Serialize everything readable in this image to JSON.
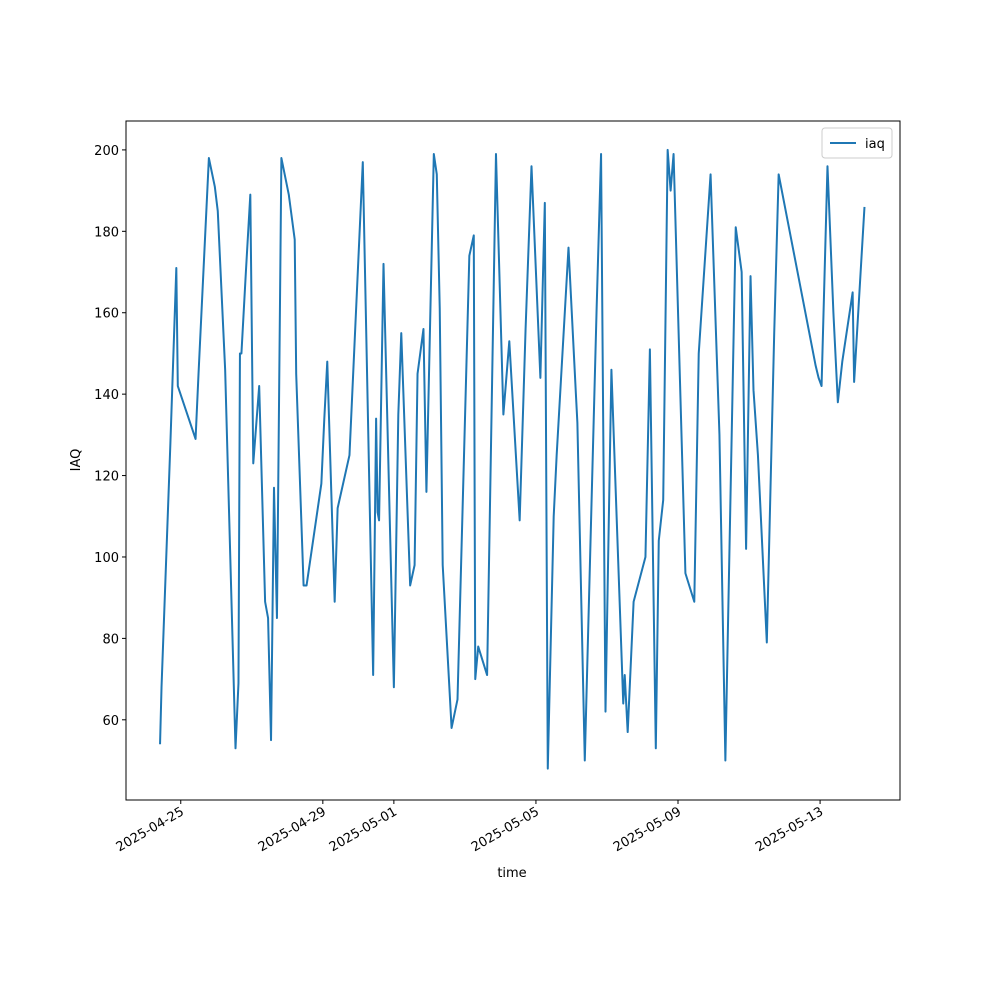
{
  "chart_data": {
    "type": "line",
    "xlabel": "time",
    "ylabel": "IAQ",
    "x": [
      "2025-04-24T10:00",
      "2025-04-24T11:00",
      "2025-04-24T17:00",
      "2025-04-24T21:00",
      "2025-04-24T22:00",
      "2025-04-25T10:00",
      "2025-04-25T12:00",
      "2025-04-25T19:00",
      "2025-04-25T23:00",
      "2025-04-26T01:00",
      "2025-04-26T06:00",
      "2025-04-26T13:00",
      "2025-04-26T15:00",
      "2025-04-26T16:00",
      "2025-04-26T17:00",
      "2025-04-26T20:00",
      "2025-04-26T23:00",
      "2025-04-27T01:00",
      "2025-04-27T05:00",
      "2025-04-27T09:00",
      "2025-04-27T11:00",
      "2025-04-27T13:00",
      "2025-04-27T15:00",
      "2025-04-27T17:00",
      "2025-04-27T20:00",
      "2025-04-28T01:00",
      "2025-04-28T05:00",
      "2025-04-28T06:00",
      "2025-04-28T11:00",
      "2025-04-28T13:00",
      "2025-04-28T23:00",
      "2025-04-29T01:00",
      "2025-04-29T03:00",
      "2025-04-29T08:00",
      "2025-04-29T10:00",
      "2025-04-29T18:00",
      "2025-04-29T20:00",
      "2025-04-29T23:00",
      "2025-04-30T03:00",
      "2025-04-30T10:00",
      "2025-04-30T12:00",
      "2025-04-30T13:00",
      "2025-04-30T14:00",
      "2025-04-30T17:00",
      "2025-05-01T00:00",
      "2025-05-01T03:00",
      "2025-05-01T05:00",
      "2025-05-01T11:00",
      "2025-05-01T14:00",
      "2025-05-01T16:00",
      "2025-05-01T20:00",
      "2025-05-01T22:00",
      "2025-05-02T03:00",
      "2025-05-02T05:00",
      "2025-05-02T07:00",
      "2025-05-02T09:00",
      "2025-05-02T15:00",
      "2025-05-02T19:00",
      "2025-05-03T03:00",
      "2025-05-03T06:00",
      "2025-05-03T07:00",
      "2025-05-03T09:00",
      "2025-05-03T15:00",
      "2025-05-03T21:00",
      "2025-05-04T02:00",
      "2025-05-04T06:00",
      "2025-05-04T13:00",
      "2025-05-04T17:00",
      "2025-05-04T21:00",
      "2025-05-05T03:00",
      "2025-05-05T06:00",
      "2025-05-05T08:00",
      "2025-05-05T12:00",
      "2025-05-05T14:00",
      "2025-05-05T22:00",
      "2025-05-06T03:00",
      "2025-05-06T04:00",
      "2025-05-06T09:00",
      "2025-05-06T17:00",
      "2025-05-06T20:00",
      "2025-05-06T23:00",
      "2025-05-07T03:00",
      "2025-05-07T11:00",
      "2025-05-07T12:00",
      "2025-05-07T14:00",
      "2025-05-07T18:00",
      "2025-05-08T02:00",
      "2025-05-08T05:00",
      "2025-05-08T09:00",
      "2025-05-08T11:00",
      "2025-05-08T14:00",
      "2025-05-08T17:00",
      "2025-05-08T19:00",
      "2025-05-08T21:00",
      "2025-05-09T05:00",
      "2025-05-09T11:00",
      "2025-05-09T14:00",
      "2025-05-09T22:00",
      "2025-05-10T04:00",
      "2025-05-10T08:00",
      "2025-05-10T15:00",
      "2025-05-10T19:00",
      "2025-05-10T22:00",
      "2025-05-11T01:00",
      "2025-05-11T03:00",
      "2025-05-11T06:00",
      "2025-05-11T12:00",
      "2025-05-11T17:00",
      "2025-05-11T20:00",
      "2025-05-12T21:00",
      "2025-05-12T23:00",
      "2025-05-13T01:00",
      "2025-05-13T05:00",
      "2025-05-13T09:00",
      "2025-05-13T12:00",
      "2025-05-13T15:00",
      "2025-05-13T22:00",
      "2025-05-13T23:00",
      "2025-05-14T06:00"
    ],
    "series": [
      {
        "name": "iaq",
        "color": "#1f77b4",
        "values": [
          54,
          68,
          128,
          171,
          142,
          129,
          145,
          198,
          191,
          185,
          146,
          53,
          69,
          150,
          150,
          170,
          189,
          123,
          142,
          89,
          85,
          55,
          117,
          85,
          198,
          189,
          178,
          145,
          93,
          93,
          118,
          134,
          148,
          89,
          112,
          125,
          141,
          165,
          197,
          71,
          134,
          111,
          109,
          172,
          68,
          135,
          155,
          93,
          98,
          145,
          156,
          116,
          199,
          194,
          161,
          98,
          58,
          65,
          174,
          179,
          70,
          78,
          71,
          199,
          135,
          153,
          109,
          156,
          196,
          144,
          187,
          48,
          110,
          125,
          176,
          140,
          133,
          50,
          161,
          199,
          62,
          146,
          64,
          71,
          57,
          89,
          100,
          151,
          53,
          104,
          114,
          200,
          190,
          199,
          96,
          89,
          150,
          194,
          130,
          50,
          181,
          170,
          102,
          169,
          141,
          125,
          79,
          155,
          194,
          147,
          144,
          142,
          196,
          160,
          138,
          148,
          165,
          143,
          186
        ]
      }
    ],
    "xlim": [
      "2025-04-23T11:00",
      "2025-05-15T06:00"
    ],
    "xticks": [
      "2025-04-25",
      "2025-04-29",
      "2025-05-01",
      "2025-05-05",
      "2025-05-09",
      "2025-05-13"
    ],
    "ylim": [
      40.3,
      207.1
    ],
    "yticks": [
      60,
      80,
      100,
      120,
      140,
      160,
      180,
      200
    ],
    "legend": "upper right"
  }
}
